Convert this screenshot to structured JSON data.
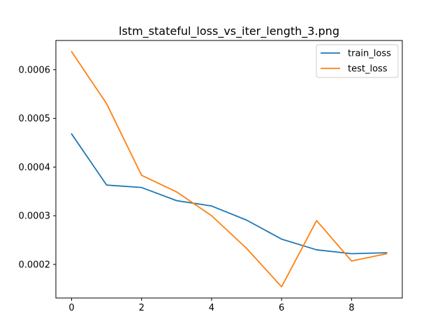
{
  "chart_data": {
    "type": "line",
    "title": "lstm_stateful_loss_vs_iter_length_3.png",
    "xlabel": "",
    "ylabel": "",
    "x": [
      0,
      1,
      2,
      3,
      4,
      5,
      6,
      7,
      8,
      9
    ],
    "xlim": [
      -0.45,
      9.45
    ],
    "ylim": [
      0.000131,
      0.00066
    ],
    "x_ticks": [
      0,
      2,
      4,
      6,
      8
    ],
    "x_tick_labels": [
      "0",
      "2",
      "4",
      "6",
      "8"
    ],
    "y_ticks": [
      0.0002,
      0.0003,
      0.0004,
      0.0005,
      0.0006
    ],
    "y_tick_labels": [
      "0.0002",
      "0.0003",
      "0.0004",
      "0.0005",
      "0.0006"
    ],
    "grid": false,
    "legend_position": "top-right",
    "series": [
      {
        "name": "train_loss",
        "color": "#1f77b4",
        "values": [
          0.000468,
          0.000363,
          0.000358,
          0.000331,
          0.00032,
          0.000291,
          0.000252,
          0.00023,
          0.000222,
          0.000224
        ]
      },
      {
        "name": "test_loss",
        "color": "#ff7f0e",
        "values": [
          0.000637,
          0.00053,
          0.000383,
          0.000349,
          0.0003,
          0.000233,
          0.000154,
          0.00029,
          0.000207,
          0.000222
        ]
      }
    ]
  }
}
